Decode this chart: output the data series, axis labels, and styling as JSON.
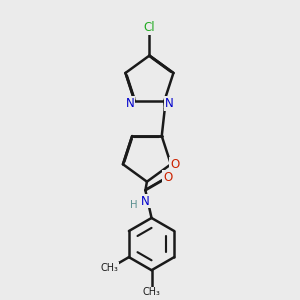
{
  "bg_color": "#ebebeb",
  "bond_color": "#1a1a1a",
  "bond_width": 1.8,
  "atom_colors": {
    "N": "#0000cc",
    "O": "#cc2200",
    "Cl": "#22aa22",
    "H": "#5a9090",
    "C": "#1a1a1a"
  },
  "font_size": 8.5,
  "dbo": 0.018
}
